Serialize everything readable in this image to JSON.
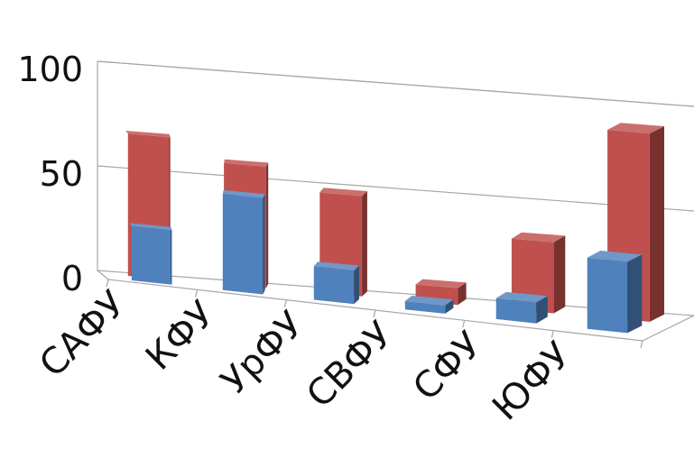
{
  "chart_data": {
    "type": "bar",
    "subtype": "3d-clustered-column",
    "categories": [
      "САФУ",
      "КФУ",
      "УрФУ",
      "СВФУ",
      "СФУ",
      "ЮФУ"
    ],
    "series": [
      {
        "values": [
          26,
          46,
          16,
          4,
          10,
          34
        ],
        "color": "#4F81BD"
      },
      {
        "values": [
          68,
          58,
          48,
          8,
          34,
          90
        ],
        "color": "#C0504D"
      }
    ],
    "y_ticks": [
      "0",
      "50",
      "100"
    ],
    "ylim": [
      0,
      100
    ],
    "title": "",
    "xlabel": "",
    "ylabel": "",
    "grid": true,
    "legend": "none"
  }
}
